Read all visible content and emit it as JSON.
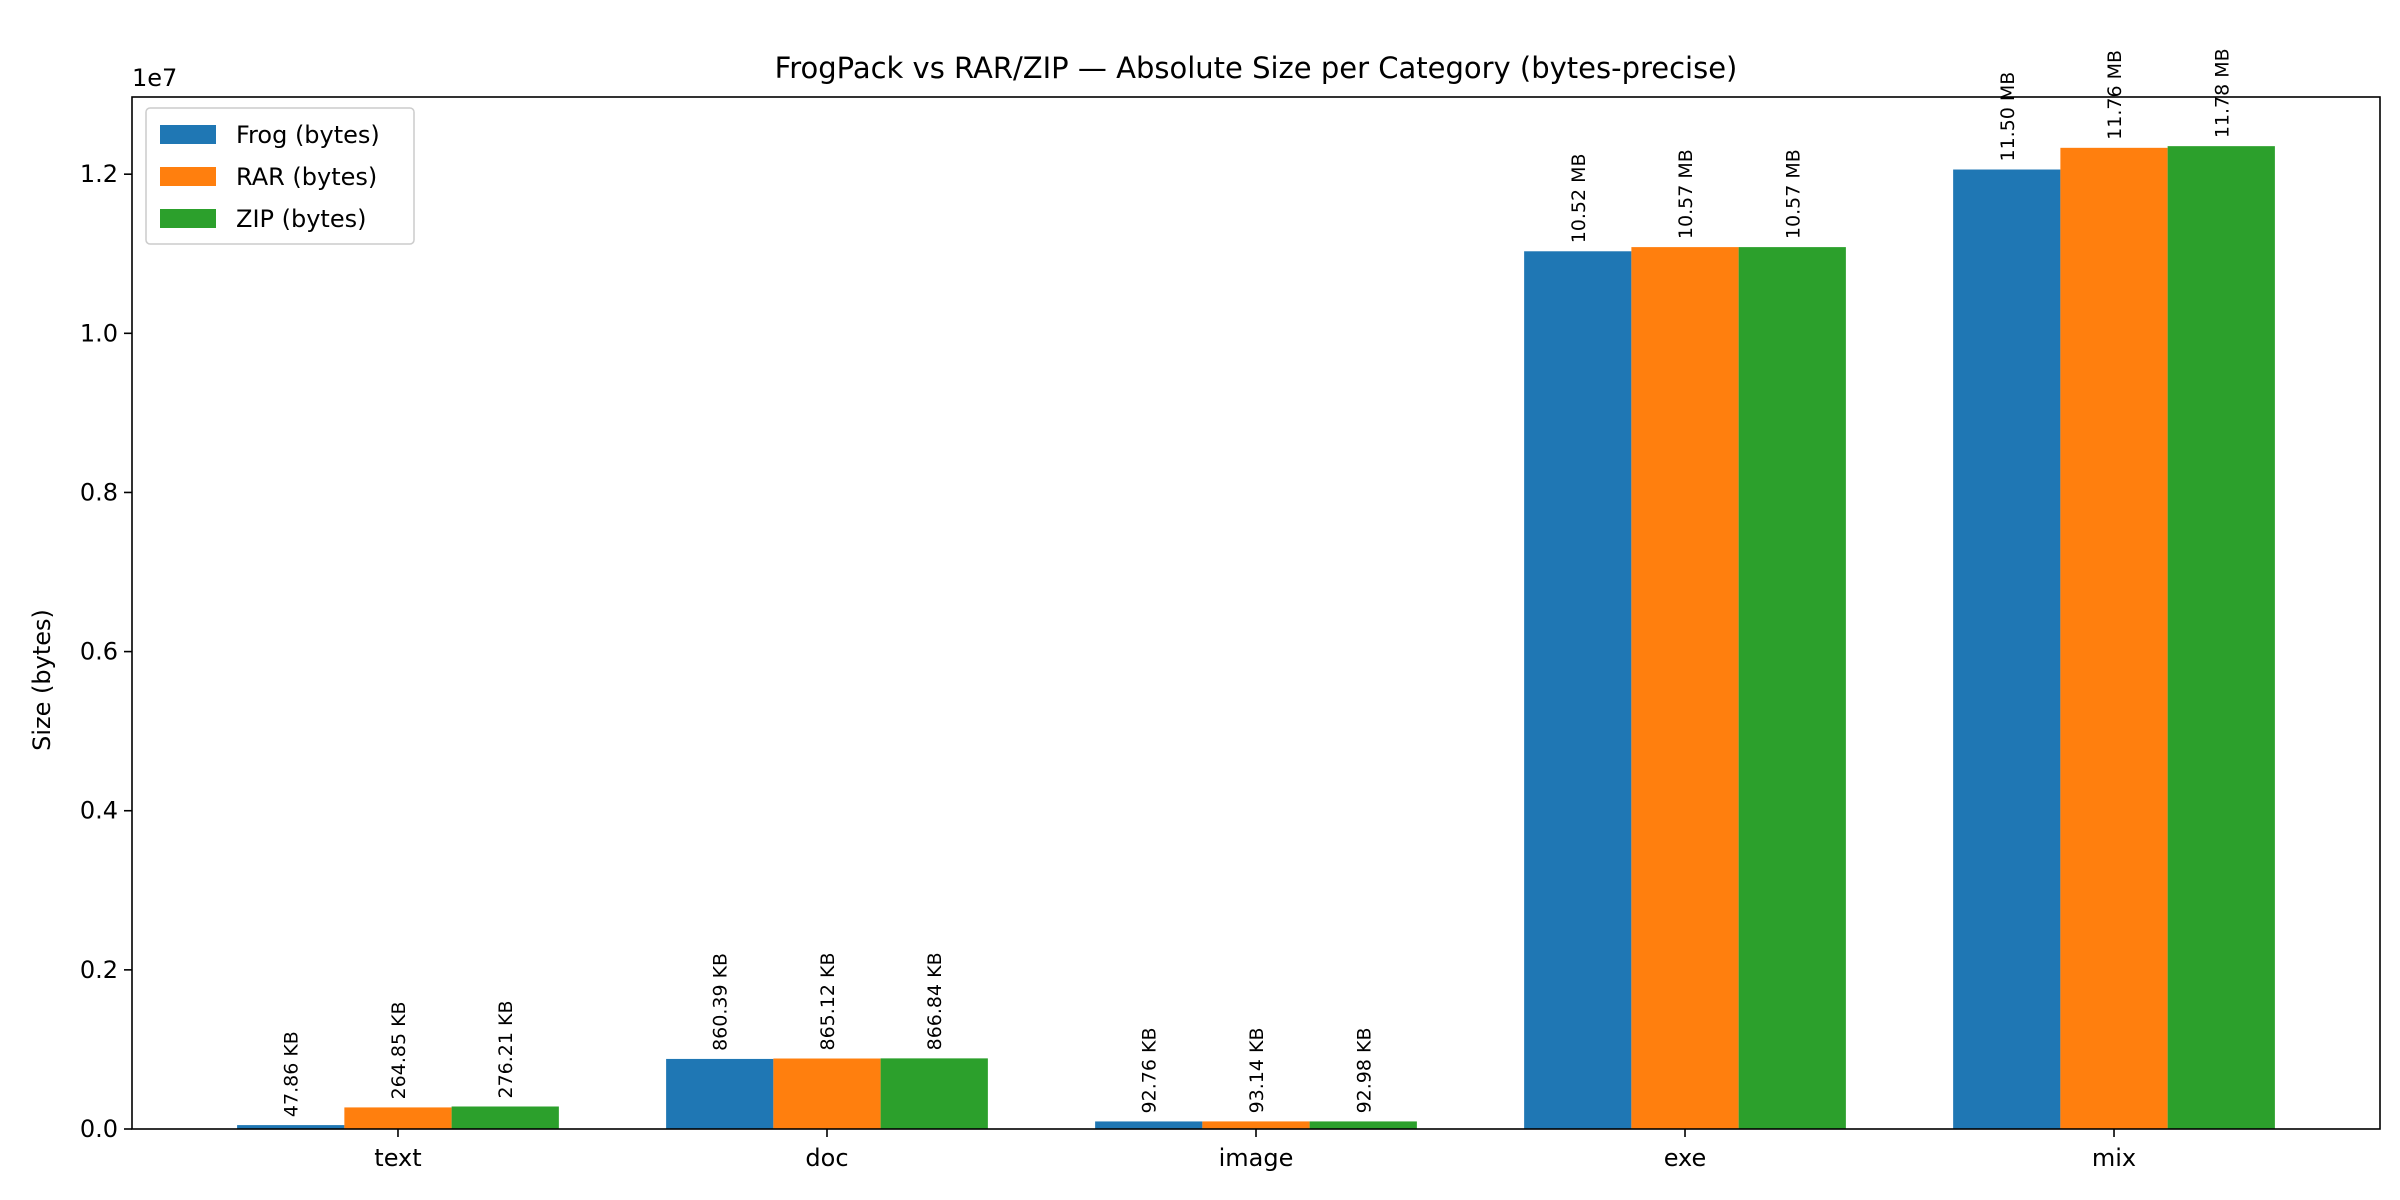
{
  "chart_data": {
    "type": "bar",
    "title": "FrogPack vs RAR/ZIP — Absolute Size per Category (bytes-precise)",
    "xlabel": "",
    "ylabel": "Size (bytes)",
    "y_offset_label": "1e7",
    "categories": [
      "text",
      "doc",
      "image",
      "exe",
      "mix"
    ],
    "series": [
      {
        "name": "Frog (bytes)",
        "color": "#1f77b4",
        "values": [
          49009,
          880639,
          94986,
          11031019,
          12058624
        ],
        "labels": [
          "47.86 KB",
          "860.39 KB",
          "92.76 KB",
          "10.52 MB",
          "11.50 MB"
        ]
      },
      {
        "name": "RAR (bytes)",
        "color": "#ff7f0e",
        "values": [
          271206,
          885883,
          95375,
          11083448,
          12331254
        ],
        "labels": [
          "264.85 KB",
          "865.12 KB",
          "93.14 KB",
          "10.57 MB",
          "11.76 MB"
        ]
      },
      {
        "name": "ZIP (bytes)",
        "color": "#2ca02c",
        "values": [
          282839,
          887644,
          95212,
          11083448,
          12352225
        ],
        "labels": [
          "276.21 KB",
          "866.84 KB",
          "92.98 KB",
          "10.57 MB",
          "11.78 MB"
        ]
      }
    ],
    "ylim": [
      0,
      12970000
    ],
    "yticks": [
      0,
      2000000,
      4000000,
      6000000,
      8000000,
      10000000,
      12000000
    ],
    "ytick_labels": [
      "0.0",
      "0.2",
      "0.4",
      "0.6",
      "0.8",
      "1.0",
      "1.2"
    ],
    "grid": false,
    "legend": "top-left"
  }
}
